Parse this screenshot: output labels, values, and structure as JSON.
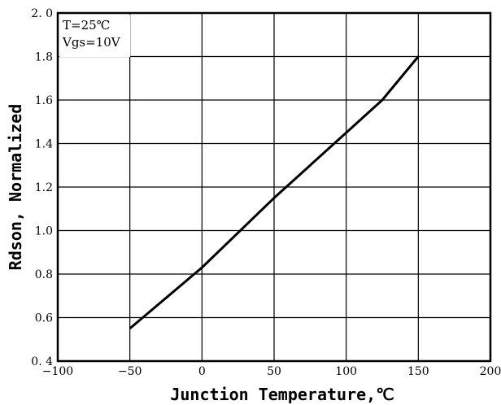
{
  "chart_data": {
    "type": "line",
    "title": "",
    "xlabel": "Junction Temperature,℃",
    "ylabel": "Rdson, Normalized",
    "xlim": [
      -100,
      200
    ],
    "ylim": [
      0.4,
      2.0
    ],
    "x_ticks": [
      "−100",
      "−50",
      "0",
      "50",
      "100",
      "150",
      "200"
    ],
    "y_ticks": [
      "0. 4",
      "0.6",
      "0.8",
      "1.0",
      "1.2",
      "1.4",
      "1.6",
      "1.8",
      "2. 0"
    ],
    "x_tick_values": [
      -100,
      -50,
      0,
      50,
      100,
      150,
      200
    ],
    "y_tick_values": [
      0.4,
      0.6,
      0.8,
      1.0,
      1.2,
      1.4,
      1.6,
      1.8,
      2.0
    ],
    "grid": true,
    "annotations": [
      "T=25℃",
      "Vgs=10V"
    ],
    "annotation_position": "top-left",
    "series": [
      {
        "x": [
          -50,
          0,
          25,
          50,
          75,
          100,
          125,
          150
        ],
        "y": [
          0.55,
          0.83,
          0.99,
          1.15,
          1.3,
          1.45,
          1.6,
          1.8
        ]
      }
    ],
    "line_color": "#000000"
  }
}
